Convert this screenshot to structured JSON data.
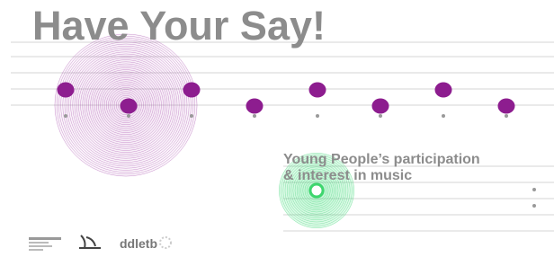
{
  "poster": {
    "title": "Have Your Say!",
    "subtitle_lines": [
      "Young People’s participation",
      "& interest in music"
    ],
    "logo_text": "ddletb"
  }
}
